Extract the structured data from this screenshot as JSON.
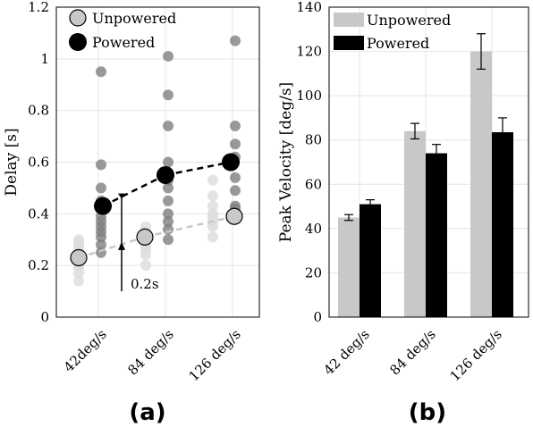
{
  "chart_data": [
    {
      "type": "scatter",
      "panel_label": "(a)",
      "ylabel": "Delay [s]",
      "ylim": [
        0,
        1.2
      ],
      "yticks": [
        0,
        0.2,
        0.4,
        0.6,
        0.8,
        1,
        1.2
      ],
      "ytick_labels": [
        "0",
        "0.2",
        "0.4",
        "0.6",
        "0.8",
        "1",
        "1.2"
      ],
      "categories": [
        "42deg/s",
        "84 deg/s",
        "126 deg/s"
      ],
      "grid": true,
      "legend_position": "top-left",
      "series": [
        {
          "name": "Unpowered",
          "color": "#c8c8c8",
          "individual": [
            [
              0.3,
              0.29,
              0.28,
              0.27,
              0.26,
              0.25,
              0.24,
              0.23,
              0.22,
              0.21,
              0.2,
              0.19,
              0.17,
              0.14
            ],
            [
              0.35,
              0.33,
              0.32,
              0.31,
              0.3,
              0.29,
              0.28,
              0.27,
              0.26,
              0.24,
              0.2
            ],
            [
              0.53,
              0.47,
              0.43,
              0.4,
              0.39,
              0.38,
              0.36,
              0.35,
              0.31
            ]
          ],
          "mean": [
            0.23,
            0.31,
            0.39
          ]
        },
        {
          "name": "Powered",
          "color": "#000000",
          "individual": [
            [
              0.95,
              0.59,
              0.5,
              0.45,
              0.42,
              0.39,
              0.37,
              0.35,
              0.33,
              0.31,
              0.28,
              0.25
            ],
            [
              1.01,
              0.86,
              0.74,
              0.6,
              0.53,
              0.5,
              0.45,
              0.4,
              0.37,
              0.34,
              0.3
            ],
            [
              1.07,
              0.74,
              0.67,
              0.62,
              0.54,
              0.49,
              0.43,
              0.42,
              0.38
            ]
          ],
          "mean": [
            0.43,
            0.55,
            0.6
          ]
        }
      ],
      "annotation": {
        "text": "0.2s",
        "y_from": 0.23,
        "y_to": 0.43
      }
    },
    {
      "type": "bar",
      "panel_label": "(b)",
      "ylabel": "Peak Velocity [deg/s]",
      "ylim": [
        0,
        140
      ],
      "yticks": [
        0,
        20,
        40,
        60,
        80,
        100,
        120,
        140
      ],
      "ytick_labels": [
        "0",
        "20",
        "40",
        "60",
        "80",
        "100",
        "120",
        "140"
      ],
      "categories": [
        "42 deg/s",
        "84 deg/s",
        "126 deg/s"
      ],
      "grid": true,
      "legend_position": "top-left",
      "series": [
        {
          "name": "Unpowered",
          "color": "#c8c8c8",
          "values": [
            45,
            84,
            120
          ],
          "errors": [
            1.3,
            3.5,
            8
          ]
        },
        {
          "name": "Powered",
          "color": "#000000",
          "values": [
            51,
            74,
            83.5
          ],
          "errors": [
            2,
            4,
            6.5
          ]
        }
      ]
    }
  ]
}
